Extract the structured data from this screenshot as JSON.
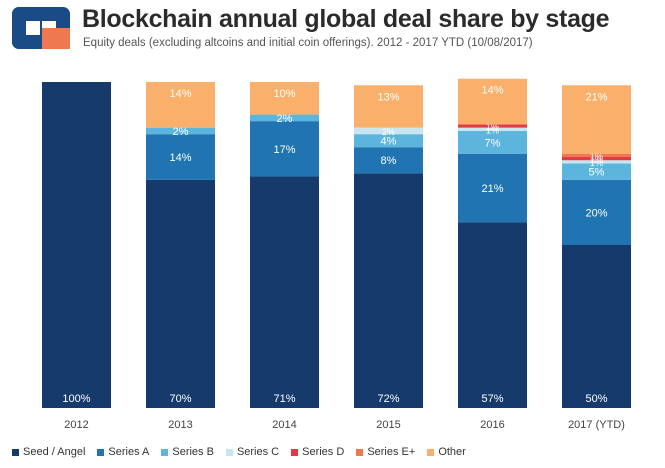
{
  "header": {
    "title": "Blockchain annual global deal share by stage",
    "subtitle": "Equity deals (excluding altcoins and initial coin offerings). 2012 - 2017 YTD (10/08/2017)"
  },
  "colors": {
    "Seed / Angel": "#163a6b",
    "Series A": "#1f74b1",
    "Series B": "#5bb5dc",
    "Series C": "#c9e5f0",
    "Series D": "#e63946",
    "Series E+": "#f07850",
    "Other": "#fab06a"
  },
  "chart_data": {
    "type": "bar",
    "stacked": true,
    "title": "Blockchain annual global deal share by stage",
    "subtitle": "Equity deals (excluding altcoins and initial coin offerings). 2012 - 2017 YTD (10/08/2017)",
    "categories": [
      "2012",
      "2013",
      "2014",
      "2015",
      "2016",
      "2017 (YTD)"
    ],
    "ylim": [
      0,
      100
    ],
    "legend_position": "bottom",
    "series": [
      {
        "name": "Seed / Angel",
        "values": [
          100,
          70,
          71,
          72,
          57,
          50
        ],
        "labels": [
          "100%",
          "70%",
          "71%",
          "72%",
          "57%",
          "50%"
        ]
      },
      {
        "name": "Series A",
        "values": [
          0,
          14,
          17,
          8,
          21,
          20
        ],
        "labels": [
          "",
          "14%",
          "17%",
          "8%",
          "21%",
          "20%"
        ]
      },
      {
        "name": "Series B",
        "values": [
          0,
          2,
          2,
          4,
          7,
          5
        ],
        "labels": [
          "",
          "2%",
          "2%",
          "4%",
          "7%",
          "5%"
        ]
      },
      {
        "name": "Series C",
        "values": [
          0,
          0,
          0,
          2,
          1,
          1
        ],
        "labels": [
          "",
          "",
          "",
          "2%",
          "1%",
          "1%"
        ]
      },
      {
        "name": "Series D",
        "values": [
          0,
          0,
          0,
          0,
          1,
          1
        ],
        "labels": [
          "",
          "",
          "",
          "",
          "1%",
          "1%"
        ]
      },
      {
        "name": "Series E+",
        "values": [
          0,
          0,
          0,
          0,
          0,
          1
        ],
        "labels": [
          "",
          "",
          "",
          "",
          "",
          "1%"
        ]
      },
      {
        "name": "Other",
        "values": [
          0,
          14,
          10,
          13,
          14,
          21
        ],
        "labels": [
          "",
          "14%",
          "10%",
          "13%",
          "14%",
          "21%"
        ]
      }
    ]
  }
}
